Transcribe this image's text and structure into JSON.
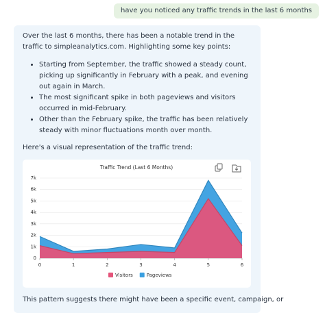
{
  "user_message": "have you noticed any traffic trends in the last 6 months",
  "assistant": {
    "intro": "Over the last 6 months, there has been a notable trend in the traffic to simpleanalytics.com. Highlighting some key points:",
    "bullets": [
      "Starting from September, the traffic showed a steady count, picking up significantly in February with a peak, and evening out again in March.",
      "The most significant spike in both pageviews and visitors occurred in mid-February.",
      "Other than the February spike, the traffic has been relatively steady with minor fluctuations month over month."
    ],
    "lead": "Here's a visual representation of the traffic trend:",
    "outro": "This pattern suggests there might have been a specific event, campaign, or"
  },
  "chart_data": {
    "type": "area",
    "title": "Traffic Trend (Last 6 Months)",
    "x": [
      0,
      1,
      2,
      3,
      4,
      5,
      6
    ],
    "series": [
      {
        "name": "Visitors",
        "color": "#e4547a",
        "values": [
          1100,
          400,
          500,
          600,
          500,
          5200,
          1100
        ]
      },
      {
        "name": "Pageviews",
        "color": "#3a9fe0",
        "values": [
          1900,
          600,
          800,
          1200,
          900,
          6800,
          2200
        ]
      }
    ],
    "xlim": [
      0,
      6
    ],
    "xticks": [
      0,
      1,
      2,
      3,
      4,
      5,
      6
    ],
    "ylim": [
      0,
      7000
    ],
    "yticks": [
      0,
      {
        "value": 1000,
        "label": "1k"
      },
      {
        "value": 2000,
        "label": "2k"
      },
      {
        "value": 3000,
        "label": "3k"
      },
      {
        "value": 4000,
        "label": "4k"
      },
      {
        "value": 5000,
        "label": "5k"
      },
      {
        "value": 6000,
        "label": "6k"
      },
      {
        "value": 7000,
        "label": "7k"
      }
    ],
    "grid": true,
    "legend": "bottom"
  }
}
